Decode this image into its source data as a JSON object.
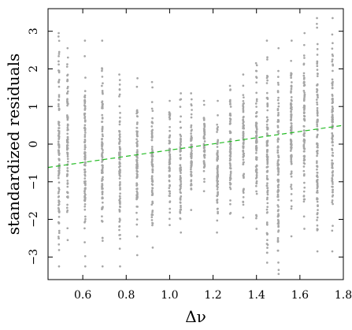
{
  "chart_data": {
    "type": "scatter",
    "title": "",
    "xlabel": "Δν",
    "ylabel": "standardized residuals",
    "xlim": [
      0.44,
      1.8
    ],
    "ylim": [
      -3.6,
      3.6
    ],
    "x_ticks": [
      0.6,
      0.8,
      1.0,
      1.2,
      1.4,
      1.6,
      1.8
    ],
    "x_tick_labels": [
      "0.6",
      "0.8",
      "1.0",
      "1.2",
      "1.4",
      "1.6",
      "1.8"
    ],
    "y_ticks": [
      -3,
      -2,
      -1,
      0,
      1,
      2,
      3
    ],
    "y_tick_labels": [
      "−3",
      "−2",
      "−1",
      "0",
      "1",
      "2",
      "3"
    ],
    "grid": false,
    "point_color": "#a6a6a6",
    "trend_color": "#22bb22",
    "columns": [
      {
        "x": 0.49,
        "min": -3.25,
        "max": 2.95
      },
      {
        "x": 0.53,
        "min": -2.55,
        "max": 2.55
      },
      {
        "x": 0.61,
        "min": -3.25,
        "max": 2.75
      },
      {
        "x": 0.69,
        "min": -3.25,
        "max": 2.75
      },
      {
        "x": 0.77,
        "min": -3.25,
        "max": 1.85
      },
      {
        "x": 0.85,
        "min": -2.95,
        "max": 1.75
      },
      {
        "x": 0.92,
        "min": -2.75,
        "max": 1.65
      },
      {
        "x": 1.0,
        "min": -2.15,
        "max": 1.15
      },
      {
        "x": 1.05,
        "min": -2.35,
        "max": 1.35
      },
      {
        "x": 1.1,
        "min": -1.75,
        "max": 1.35
      },
      {
        "x": 1.16,
        "min": -1.25,
        "max": 1.15
      },
      {
        "x": 1.22,
        "min": -2.35,
        "max": 1.15
      },
      {
        "x": 1.28,
        "min": -1.85,
        "max": 1.55
      },
      {
        "x": 1.34,
        "min": -1.95,
        "max": 1.85
      },
      {
        "x": 1.4,
        "min": -2.25,
        "max": 2.15
      },
      {
        "x": 1.45,
        "min": -3.15,
        "max": 2.75
      },
      {
        "x": 1.5,
        "min": -3.45,
        "max": 2.55
      },
      {
        "x": 1.56,
        "min": -2.45,
        "max": 2.75
      },
      {
        "x": 1.62,
        "min": -2.25,
        "max": 2.95
      },
      {
        "x": 1.68,
        "min": -2.85,
        "max": 3.35
      },
      {
        "x": 1.75,
        "min": -2.85,
        "max": 3.35
      }
    ],
    "trend_line": {
      "x": [
        0.44,
        1.8
      ],
      "y": [
        -0.62,
        0.5
      ]
    }
  }
}
